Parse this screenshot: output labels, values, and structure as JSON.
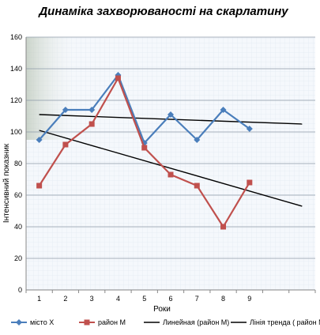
{
  "chart_data": {
    "type": "line",
    "title": "Динаміка захворюваності на скарлатину",
    "xlabel": "Роки",
    "ylabel": "Інтенсивний показник",
    "categories": [
      "1",
      "2",
      "3",
      "4",
      "5",
      "6",
      "7",
      "8",
      "9"
    ],
    "ylim": [
      0,
      160
    ],
    "yticks": [
      "0",
      "20",
      "40",
      "60",
      "80",
      "100",
      "120",
      "140",
      "160"
    ],
    "grid": true,
    "legend_position": "bottom",
    "series": [
      {
        "name": "місто Х",
        "color": "#4a7ebb",
        "marker": "diamond",
        "values": [
          95,
          114,
          114,
          136,
          93,
          111,
          95,
          114,
          102
        ]
      },
      {
        "name": "район М",
        "color": "#c0504d",
        "marker": "square",
        "values": [
          66,
          92,
          105,
          134,
          90,
          73,
          66,
          40,
          68
        ]
      }
    ],
    "trendlines": [
      {
        "name": "Линейная (район М)",
        "color": "#000000",
        "x": [
          1,
          11
        ],
        "values": [
          111,
          105
        ]
      },
      {
        "name": "Лінія тренда ( район М)",
        "color": "#000000",
        "x": [
          1,
          11
        ],
        "values": [
          101,
          53
        ]
      }
    ]
  }
}
